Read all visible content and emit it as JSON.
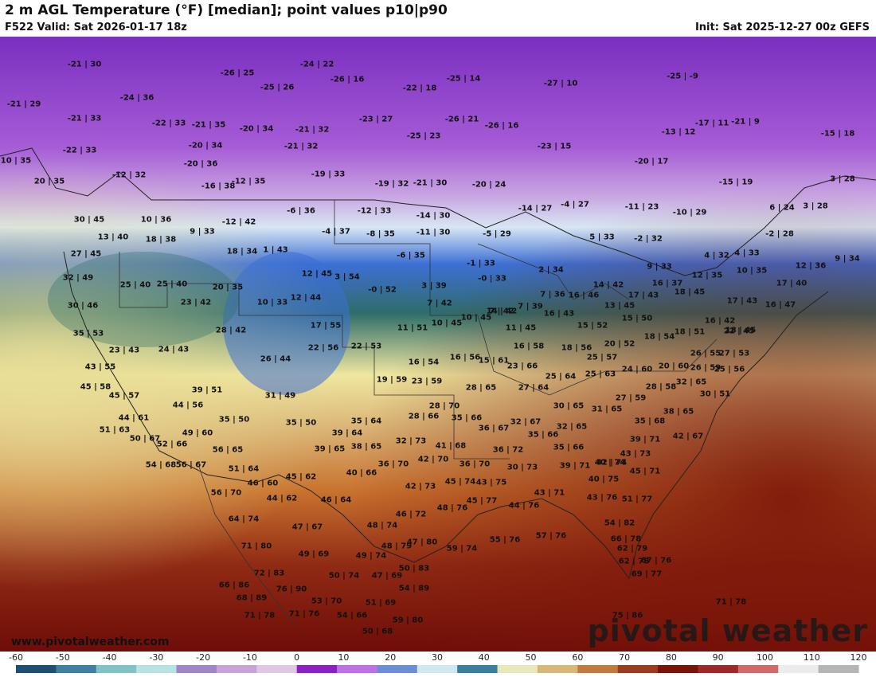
{
  "header": {
    "title": "2 m AGL Temperature (°F) [median]; point values p10|p90",
    "valid": "F522 Valid: Sat 2026-01-17 18z",
    "init": "Init: Sat 2025-12-27 00z GEFS"
  },
  "footer": {
    "site_url": "www.pivotalweather.com",
    "brand": "pivotal weather"
  },
  "colorbar": {
    "ticks": [
      "-60",
      "-50",
      "-40",
      "-30",
      "-20",
      "-10",
      "0",
      "10",
      "20",
      "30",
      "40",
      "50",
      "60",
      "70",
      "80",
      "90",
      "100",
      "110",
      "120"
    ],
    "colors": [
      "#1d4e73",
      "#3f7fa4",
      "#7fc3c6",
      "#b7e3e3",
      "#9f86c9",
      "#c9a2dc",
      "#e2c6e6",
      "#8c1fc6",
      "#c070e6",
      "#6a8fd8",
      "#d2e8f0",
      "#3a7fa0",
      "#e8e8b8",
      "#d9b877",
      "#c47a3d",
      "#9d3b1f",
      "#7a1408",
      "#a02828",
      "#d26a6a",
      "#ececec",
      "#b5b5b5"
    ]
  },
  "map": {
    "colors": {
      "deep_purple": "#7a2fc0",
      "purple": "#a65cd6",
      "lavender": "#c9a6e2",
      "pale_blue": "#d8e6f4",
      "blue": "#3d6fd4",
      "teal": "#2f6d6a",
      "yellow": "#efe7a0",
      "tan": "#d9b274",
      "orange": "#c8722e",
      "red_brown": "#8f2a14",
      "dark_red": "#6e0d08",
      "border": "#222222"
    },
    "points": [
      {
        "label": "-21 | 30"
      },
      {
        "label": "-21 | 29"
      },
      {
        "label": "-21 | 33"
      },
      {
        "label": "-24 | 36"
      },
      {
        "label": "-26 | 25"
      },
      {
        "label": "-24 | 22"
      },
      {
        "label": "-26 | 16"
      },
      {
        "label": "-25 | 14"
      },
      {
        "label": "-27 | 10"
      },
      {
        "label": "-25 | -9"
      },
      {
        "label": "-22 | 18"
      },
      {
        "label": "-25 | 26"
      },
      {
        "label": "-22 | 33"
      },
      {
        "label": "-21 | 35"
      },
      {
        "label": "-20 | 34"
      },
      {
        "label": "-21 | 32"
      },
      {
        "label": "-23 | 27"
      },
      {
        "label": "-26 | 21"
      },
      {
        "label": "-26 | 16"
      },
      {
        "label": "-17 | 11"
      },
      {
        "label": "-21 | 9"
      },
      {
        "label": "-13 | 12"
      },
      {
        "label": "-15 | 18"
      },
      {
        "label": "-22 | 33"
      },
      {
        "label": "-20 | 34"
      },
      {
        "label": "-21 | 32"
      },
      {
        "label": "-25 | 23"
      },
      {
        "label": "-23 | 15"
      },
      {
        "label": "-20 | 17"
      },
      {
        "label": "10 | 35"
      },
      {
        "label": "-20 | 36"
      },
      {
        "label": "-12 | 32"
      },
      {
        "label": "-16 | 38"
      },
      {
        "label": "-12 | 35"
      },
      {
        "label": "-19 | 33"
      },
      {
        "label": "-19 | 32"
      },
      {
        "label": "-21 | 30"
      },
      {
        "label": "-20 | 24"
      },
      {
        "label": "-15 | 19"
      },
      {
        "label": "3 | 28"
      },
      {
        "label": "20 | 35"
      },
      {
        "label": "30 | 45"
      },
      {
        "label": "10 | 36"
      },
      {
        "label": "-12 | 42"
      },
      {
        "label": "-6 | 36"
      },
      {
        "label": "-12 | 33"
      },
      {
        "label": "-14 | 30"
      },
      {
        "label": "-14 | 27"
      },
      {
        "label": "-4 | 27"
      },
      {
        "label": "-11 | 23"
      },
      {
        "label": "-10 | 29"
      },
      {
        "label": "6 | 24"
      },
      {
        "label": "3 | 28"
      },
      {
        "label": "13 | 40"
      },
      {
        "label": "18 | 38"
      },
      {
        "label": "9 | 33"
      },
      {
        "label": "-4 | 37"
      },
      {
        "label": "-8 | 35"
      },
      {
        "label": "-11 | 30"
      },
      {
        "label": "-5 | 29"
      },
      {
        "label": "5 | 33"
      },
      {
        "label": "-2 | 32"
      },
      {
        "label": "-2 | 28"
      },
      {
        "label": "27 | 45"
      },
      {
        "label": "18 | 34"
      },
      {
        "label": "1 | 43"
      },
      {
        "label": "-6 | 35"
      },
      {
        "label": "-1 | 33"
      },
      {
        "label": "4 | 32"
      },
      {
        "label": "4 | 33"
      },
      {
        "label": "12 | 36"
      },
      {
        "label": "9 | 34"
      },
      {
        "label": "32 | 49"
      },
      {
        "label": "25 | 40"
      },
      {
        "label": "25 | 40"
      },
      {
        "label": "12 | 45"
      },
      {
        "label": "3 | 54"
      },
      {
        "label": "-0 | 33"
      },
      {
        "label": "2 | 34"
      },
      {
        "label": "9 | 33"
      },
      {
        "label": "12 | 35"
      },
      {
        "label": "10 | 35"
      },
      {
        "label": "17 | 40"
      },
      {
        "label": "20 | 35"
      },
      {
        "label": "3 | 39"
      },
      {
        "label": "-0 | 52"
      },
      {
        "label": "7 | 36"
      },
      {
        "label": "16 | 46"
      },
      {
        "label": "14 | 42"
      },
      {
        "label": "16 | 37"
      },
      {
        "label": "18 | 45"
      },
      {
        "label": "30 | 46"
      },
      {
        "label": "23 | 42"
      },
      {
        "label": "10 | 33"
      },
      {
        "label": "12 | 44"
      },
      {
        "label": "7 | 42"
      },
      {
        "label": "7 | 39"
      },
      {
        "label": "14 | 42"
      },
      {
        "label": "13 | 45"
      },
      {
        "label": "17 | 43"
      },
      {
        "label": "17 | 43"
      },
      {
        "label": "16 | 47"
      },
      {
        "label": "35 | 53"
      },
      {
        "label": "28 | 42"
      },
      {
        "label": "17 | 55"
      },
      {
        "label": "11 | 51"
      },
      {
        "label": "10 | 45"
      },
      {
        "label": "10 | 45"
      },
      {
        "label": "7 | 42"
      },
      {
        "label": "16 | 43"
      },
      {
        "label": "15 | 50"
      },
      {
        "label": "18 | 45"
      },
      {
        "label": "11 | 45"
      },
      {
        "label": "15 | 52"
      },
      {
        "label": "18 | 51"
      },
      {
        "label": "16 | 42"
      },
      {
        "label": "22 | 45"
      },
      {
        "label": "23 | 43"
      },
      {
        "label": "24 | 43"
      },
      {
        "label": "22 | 56"
      },
      {
        "label": "22 | 53"
      },
      {
        "label": "16 | 58"
      },
      {
        "label": "18 | 56"
      },
      {
        "label": "20 | 52"
      },
      {
        "label": "18 | 54"
      },
      {
        "label": "26 | 55"
      },
      {
        "label": "27 | 53"
      },
      {
        "label": "43 | 55"
      },
      {
        "label": "26 | 44"
      },
      {
        "label": "16 | 54"
      },
      {
        "label": "16 | 56"
      },
      {
        "label": "15 | 61"
      },
      {
        "label": "23 | 66"
      },
      {
        "label": "25 | 57"
      },
      {
        "label": "25 | 63"
      },
      {
        "label": "24 | 60"
      },
      {
        "label": "20 | 60"
      },
      {
        "label": "26 | 59"
      },
      {
        "label": "25 | 56"
      },
      {
        "label": "25 | 64"
      },
      {
        "label": "45 | 58"
      },
      {
        "label": "39 | 51"
      },
      {
        "label": "19 | 59"
      },
      {
        "label": "23 | 59"
      },
      {
        "label": "28 | 65"
      },
      {
        "label": "27 | 64"
      },
      {
        "label": "28 | 58"
      },
      {
        "label": "32 | 65"
      },
      {
        "label": "45 | 57"
      },
      {
        "label": "31 | 49"
      },
      {
        "label": "30 | 51"
      },
      {
        "label": "27 | 59"
      },
      {
        "label": "44 | 56"
      },
      {
        "label": "28 | 70"
      },
      {
        "label": "30 | 65"
      },
      {
        "label": "31 | 65"
      },
      {
        "label": "38 | 65"
      },
      {
        "label": "44 | 61"
      },
      {
        "label": "35 | 50"
      },
      {
        "label": "35 | 64"
      },
      {
        "label": "28 | 66"
      },
      {
        "label": "35 | 66"
      },
      {
        "label": "32 | 67"
      },
      {
        "label": "35 | 68"
      },
      {
        "label": "51 | 63"
      },
      {
        "label": "49 | 60"
      },
      {
        "label": "35 | 50"
      },
      {
        "label": "39 | 64"
      },
      {
        "label": "36 | 67"
      },
      {
        "label": "32 | 65"
      },
      {
        "label": "42 | 67"
      },
      {
        "label": "50 | 67"
      },
      {
        "label": "52 | 66"
      },
      {
        "label": "32 | 73"
      },
      {
        "label": "35 | 66"
      },
      {
        "label": "39 | 71"
      },
      {
        "label": "56 | 65"
      },
      {
        "label": "39 | 65"
      },
      {
        "label": "38 | 65"
      },
      {
        "label": "41 | 68"
      },
      {
        "label": "36 | 72"
      },
      {
        "label": "36 | 70"
      },
      {
        "label": "35 | 66"
      },
      {
        "label": "43 | 73"
      },
      {
        "label": "54 | 68"
      },
      {
        "label": "56 | 67"
      },
      {
        "label": "51 | 64"
      },
      {
        "label": "42 | 70"
      },
      {
        "label": "36 | 70"
      },
      {
        "label": "42 | 74"
      },
      {
        "label": "30 | 73"
      },
      {
        "label": "39 | 71"
      },
      {
        "label": "40 | 74"
      },
      {
        "label": "45 | 71"
      },
      {
        "label": "45 | 62"
      },
      {
        "label": "40 | 66"
      },
      {
        "label": "40 | 75"
      },
      {
        "label": "46 | 60"
      },
      {
        "label": "56 | 70"
      },
      {
        "label": "42 | 73"
      },
      {
        "label": "45 | 74"
      },
      {
        "label": "43 | 75"
      },
      {
        "label": "43 | 71"
      },
      {
        "label": "43 | 76"
      },
      {
        "label": "51 | 77"
      },
      {
        "label": "44 | 62"
      },
      {
        "label": "46 | 64"
      },
      {
        "label": "48 | 76"
      },
      {
        "label": "45 | 77"
      },
      {
        "label": "44 | 76"
      },
      {
        "label": "64 | 74"
      },
      {
        "label": "46 | 72"
      },
      {
        "label": "54 | 82"
      },
      {
        "label": "47 | 67"
      },
      {
        "label": "48 | 74"
      },
      {
        "label": "55 | 76"
      },
      {
        "label": "57 | 76"
      },
      {
        "label": "66 | 78"
      },
      {
        "label": "71 | 80"
      },
      {
        "label": "48 | 79"
      },
      {
        "label": "47 | 80"
      },
      {
        "label": "59 | 74"
      },
      {
        "label": "62 | 79"
      },
      {
        "label": "49 | 69"
      },
      {
        "label": "49 | 74"
      },
      {
        "label": "67 | 76"
      },
      {
        "label": "62 | 78"
      },
      {
        "label": "72 | 83"
      },
      {
        "label": "50 | 83"
      },
      {
        "label": "69 | 77"
      },
      {
        "label": "50 | 74"
      },
      {
        "label": "47 | 69"
      },
      {
        "label": "66 | 86"
      },
      {
        "label": "76 | 90"
      },
      {
        "label": "54 | 89"
      },
      {
        "label": "68 | 89"
      },
      {
        "label": "53 | 70"
      },
      {
        "label": "71 | 78"
      },
      {
        "label": "51 | 69"
      },
      {
        "label": "71 | 78"
      },
      {
        "label": "71 | 76"
      },
      {
        "label": "54 | 66"
      },
      {
        "label": "75 | 86"
      },
      {
        "label": "59 | 80"
      },
      {
        "label": "50 | 68"
      }
    ]
  }
}
